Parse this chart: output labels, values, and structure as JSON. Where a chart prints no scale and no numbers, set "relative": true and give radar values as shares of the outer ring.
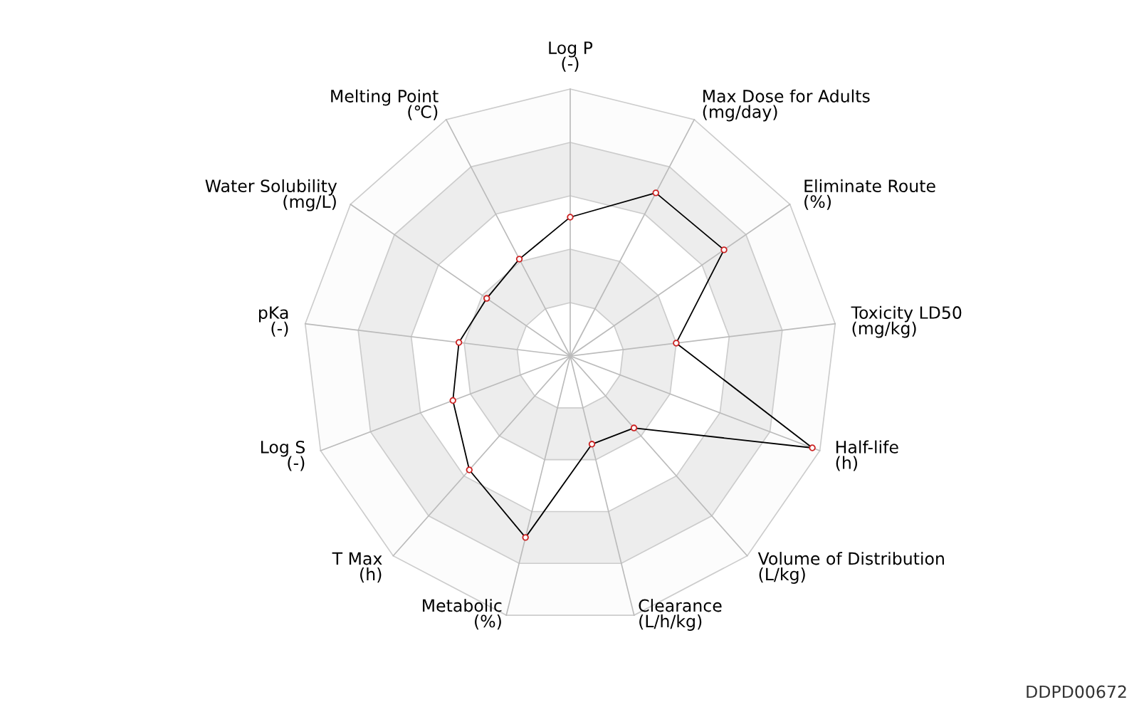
{
  "chart_data": {
    "type": "radar",
    "relative": true,
    "grid": true,
    "marker": "circle",
    "line_style": "solid",
    "categories": [
      "Log P\n(-)",
      "Max Dose for Adults\n(mg/day)",
      "Eliminate Route\n(%)",
      "Toxicity LD50\n(mg/kg)",
      "Half-life\n(h)",
      "Volume of Distribution\n(L/kg)",
      "Clearance\n(L/h/kg)",
      "Metabolic\n(%)",
      "T Max\n(h)",
      "Log S\n(-)",
      "pKa\n(-)",
      "Water Solubility\n(mg/L)",
      "Melting Point\n(℃)"
    ],
    "series": [
      {
        "color": "#000000",
        "colors": [
          "#cc2222",
          "#cc2222",
          "#cc2222",
          "#cc2222",
          "#cc2222",
          "#cc2222",
          "#cc2222",
          "#cc2222",
          "#cc2222",
          "#cc2222",
          "#cc2222",
          "#cc2222",
          "#cc2222"
        ],
        "values": [
          0.52,
          0.69,
          0.7,
          0.4,
          0.97,
          0.36,
          0.34,
          0.7,
          0.57,
          0.47,
          0.42,
          0.38,
          0.41
        ]
      }
    ],
    "annotations": [
      "DDPD00672"
    ]
  }
}
